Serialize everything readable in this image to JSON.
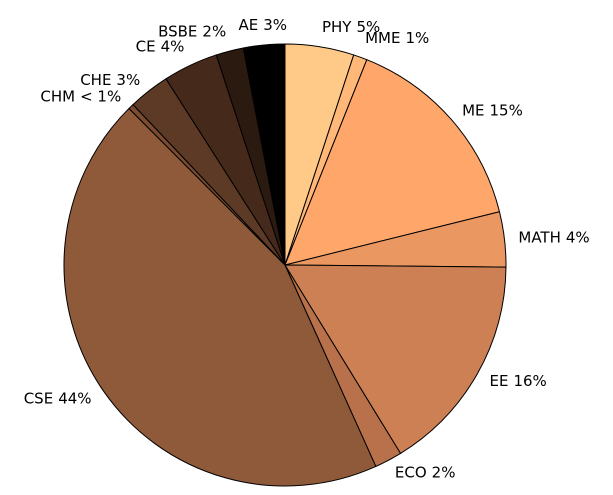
{
  "chart_data": {
    "type": "pie",
    "categories": [
      "PHY",
      "MME",
      "ME",
      "MATH",
      "EE",
      "ECO",
      "CSE",
      "CHM",
      "CHE",
      "CE",
      "BSBE",
      "AE"
    ],
    "values": [
      5,
      1,
      15,
      4,
      16,
      2,
      44,
      0.4,
      3,
      4,
      2,
      3
    ],
    "value_labels": [
      "5%",
      "1%",
      "15%",
      "4%",
      "16%",
      "2%",
      "44%",
      "< 1%",
      "3%",
      "4%",
      "2%",
      "3%"
    ],
    "colors": [
      "#ffc987",
      "#ffb878",
      "#ffa66b",
      "#ea9761",
      "#cd8053",
      "#b8714a",
      "#8f5a3a",
      "#7a4b31",
      "#5c3a25",
      "#45291a",
      "#2a1a10",
      "#000000"
    ]
  }
}
